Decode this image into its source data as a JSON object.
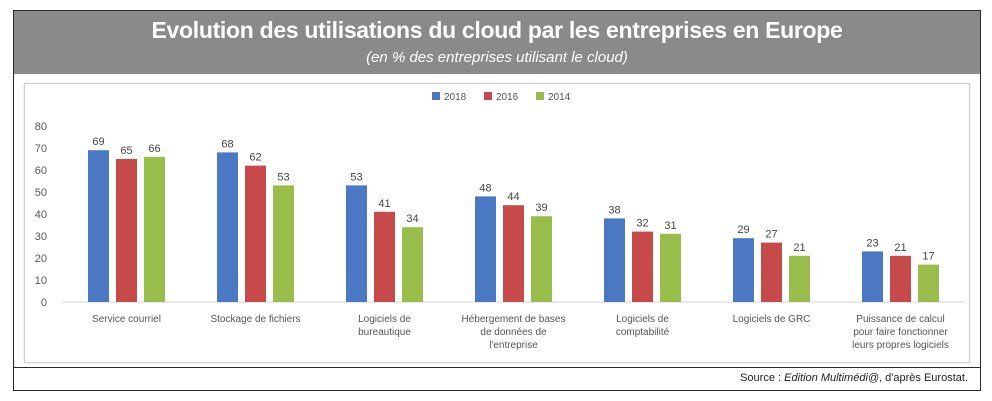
{
  "header": {
    "title": "Evolution des utilisations du cloud par les entreprises en Europe",
    "subtitle": "(en % des entreprises utilisant le cloud)"
  },
  "source": {
    "prefix": "Source : ",
    "publication": "Edition Multimédi@",
    "suffix": ", d'après Eurostat."
  },
  "chart_data": {
    "type": "bar",
    "categories": [
      [
        "Service courriel"
      ],
      [
        "Stockage de fichiers"
      ],
      [
        "Logiciels de",
        "bureautique"
      ],
      [
        "Hébergement de bases",
        "de données de",
        "l'entreprise"
      ],
      [
        "Logiciels de",
        "comptabilité"
      ],
      [
        "Logiciels de GRC"
      ],
      [
        "Puissance de calcul",
        "pour faire fonctionner",
        "leurs propres logiciels"
      ]
    ],
    "series": [
      {
        "name": "2018",
        "color": "#4a78c2",
        "values": [
          69,
          68,
          53,
          48,
          38,
          29,
          23
        ]
      },
      {
        "name": "2016",
        "color": "#c74a4a",
        "values": [
          65,
          62,
          41,
          44,
          32,
          27,
          21
        ]
      },
      {
        "name": "2014",
        "color": "#98bd4a",
        "values": [
          66,
          53,
          34,
          39,
          31,
          21,
          17
        ]
      }
    ],
    "ylim": [
      0,
      80
    ],
    "yticks": [
      "0",
      "10",
      "20",
      "30",
      "40",
      "50",
      "60",
      "70",
      "80"
    ],
    "grid": false,
    "legend": "top-center"
  }
}
